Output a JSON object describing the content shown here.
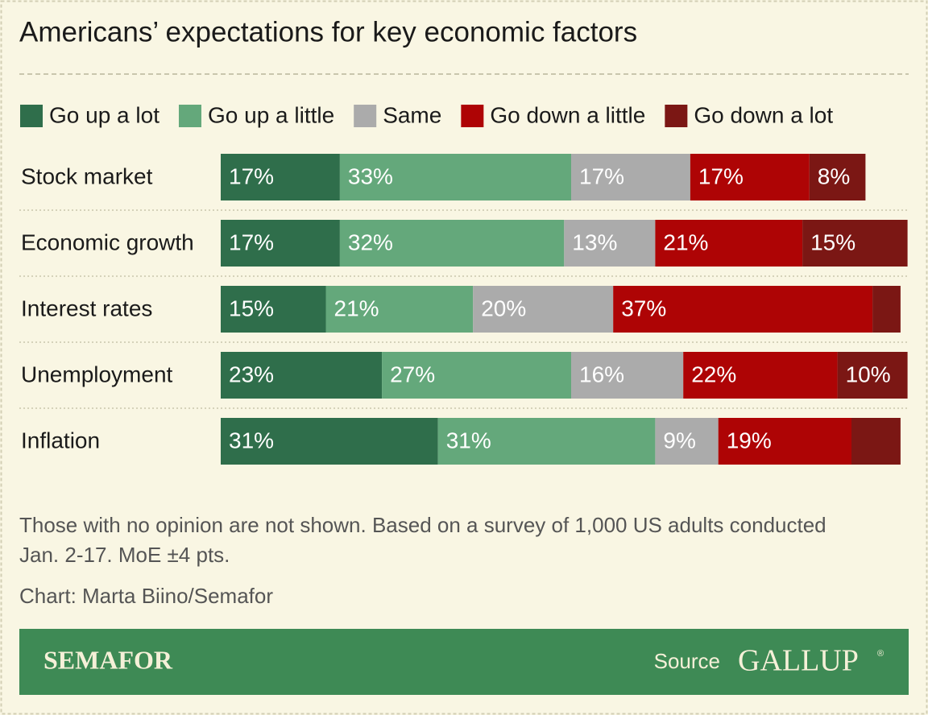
{
  "chart_data": {
    "type": "bar",
    "orientation": "horizontal",
    "stacked": true,
    "title": "Americans’ expectations for key economic factors",
    "categories": [
      "Stock market",
      "Economic growth",
      "Interest rates",
      "Unemployment",
      "Inflation"
    ],
    "series": [
      {
        "name": "Go up a lot",
        "color": "#2f6e4b",
        "values": [
          17,
          17,
          15,
          23,
          31
        ],
        "value_labels": [
          "17%",
          "17%",
          "15%",
          "23%",
          "31%"
        ]
      },
      {
        "name": "Go up a little",
        "color": "#64a87b",
        "values": [
          33,
          32,
          21,
          27,
          31
        ],
        "value_labels": [
          "33%",
          "32%",
          "21%",
          "27%",
          "31%"
        ]
      },
      {
        "name": "Same",
        "color": "#ababab",
        "values": [
          17,
          13,
          20,
          16,
          9
        ],
        "value_labels": [
          "17%",
          "13%",
          "20%",
          "16%",
          "9%"
        ]
      },
      {
        "name": "Go down a little",
        "color": "#ae0405",
        "values": [
          17,
          21,
          37,
          22,
          19
        ],
        "value_labels": [
          "17%",
          "21%",
          "37%",
          "22%",
          "19%"
        ]
      },
      {
        "name": "Go down a lot",
        "color": "#7b1714",
        "values": [
          8,
          15,
          4,
          10,
          7
        ],
        "value_labels": [
          "8%",
          "15%",
          null,
          "10%",
          null
        ]
      }
    ],
    "xlim": [
      0,
      100
    ],
    "legend": "top",
    "note": [
      "Those with no opinion are not shown. Based on a survey of 1,000 US adults conducted",
      "Jan. 2-17. MoE ±4 pts."
    ],
    "credit": "Chart: Marta Biino/Semafor"
  },
  "footer": {
    "brand": "SEMAFOR",
    "source_label": "Source",
    "source": "GALLUP",
    "mark": "®"
  }
}
